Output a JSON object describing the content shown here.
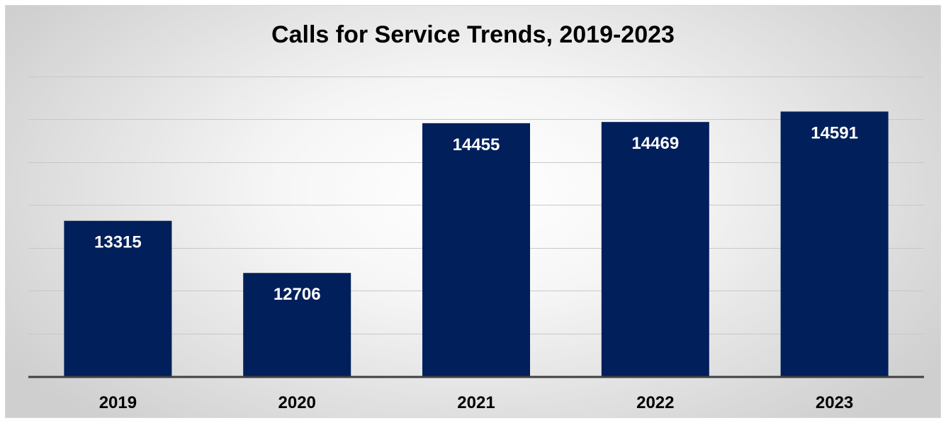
{
  "chart_data": {
    "type": "bar",
    "title": "Calls for Service Trends, 2019-2023",
    "categories": [
      "2019",
      "2020",
      "2021",
      "2022",
      "2023"
    ],
    "values": [
      13315,
      12706,
      14455,
      14469,
      14591
    ],
    "ylim": [
      11500,
      15000
    ],
    "xlabel": "",
    "ylabel": "",
    "grid": true,
    "legend": "none",
    "bar_color": "#001f5b",
    "data_label_color": "#ffffff"
  }
}
